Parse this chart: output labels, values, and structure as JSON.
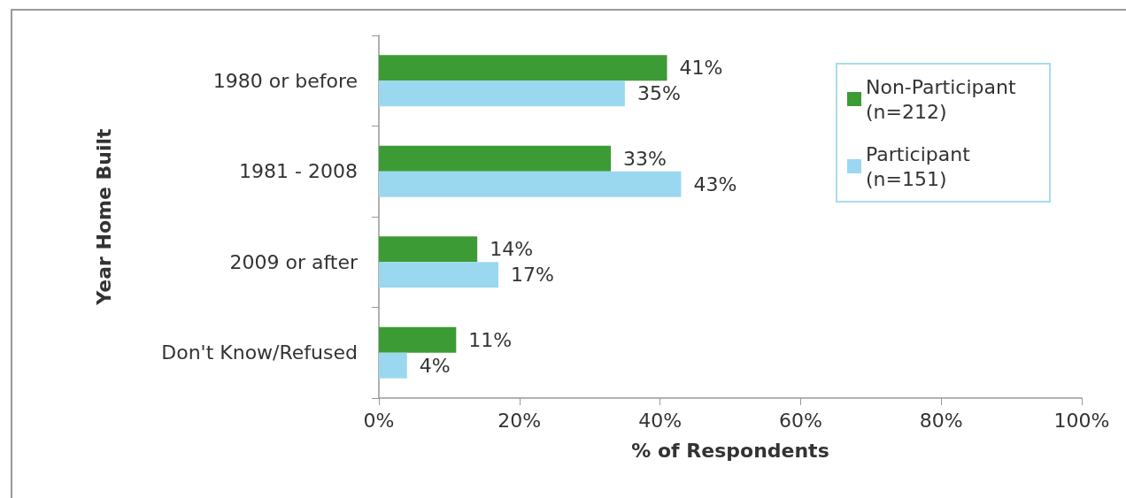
{
  "chart_data": {
    "type": "bar",
    "orientation": "horizontal",
    "ylabel": "Year Home Built",
    "xlabel": "% of Respondents",
    "categories": [
      "1980 or before",
      "1981 - 2008",
      "2009 or after",
      "Don't Know/Refused"
    ],
    "series": [
      {
        "name": "Non-Participant (n=212)",
        "color": "#3d9b35",
        "values": [
          41,
          33,
          14,
          11
        ],
        "value_labels": [
          "41%",
          "33%",
          "14%",
          "11%"
        ]
      },
      {
        "name": "Participant (n=151)",
        "color": "#9ad8f0",
        "values": [
          35,
          43,
          17,
          4
        ],
        "value_labels": [
          "35%",
          "43%",
          "17%",
          "4%"
        ]
      }
    ],
    "xlim": [
      0,
      100
    ],
    "xticks": [
      {
        "value": 0,
        "label": "0%"
      },
      {
        "value": 20,
        "label": "20%"
      },
      {
        "value": 40,
        "label": "40%"
      },
      {
        "value": 60,
        "label": "60%"
      },
      {
        "value": 80,
        "label": "80%"
      },
      {
        "value": 100,
        "label": "100%"
      }
    ],
    "grid": false,
    "legend": "top right"
  }
}
